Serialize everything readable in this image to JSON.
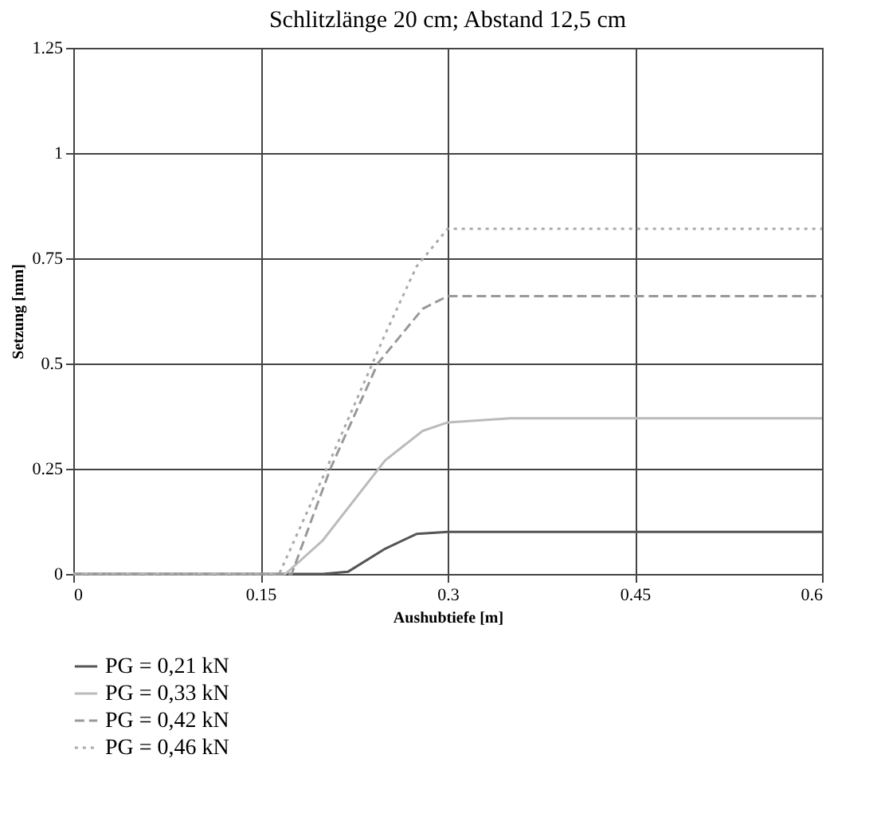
{
  "chart_data": {
    "type": "line",
    "title": "Schlitzlänge 20 cm; Abstand 12,5 cm",
    "xlabel": "Aushubtiefe [m]",
    "ylabel": "Setzung [mm]",
    "xlim": [
      0,
      0.6
    ],
    "xticks": [
      0,
      0.15,
      0.3,
      0.45,
      0.6
    ],
    "ylim": [
      0,
      1.25
    ],
    "yticks": [
      0,
      0.25,
      0.5,
      0.75,
      1,
      1.25
    ],
    "grid": true,
    "legend": "bottom left",
    "series": [
      {
        "name": "PG = 0,21 kN",
        "color": "#555555",
        "line_style": "solid",
        "x": [
          0,
          0.2,
          0.22,
          0.25,
          0.275,
          0.3,
          0.45,
          0.6
        ],
        "values": [
          0,
          0,
          0.005,
          0.06,
          0.095,
          0.1,
          0.1,
          0.1
        ]
      },
      {
        "name": "PG = 0,33 kN",
        "color": "#bbbbbb",
        "line_style": "solid",
        "x": [
          0,
          0.17,
          0.2,
          0.25,
          0.28,
          0.3,
          0.35,
          0.6
        ],
        "values": [
          0,
          0,
          0.08,
          0.27,
          0.34,
          0.36,
          0.37,
          0.37
        ]
      },
      {
        "name": "PG = 0,42 kN",
        "color": "#999999",
        "line_style": "dashed",
        "x": [
          0,
          0.175,
          0.206,
          0.244,
          0.28,
          0.3,
          0.6
        ],
        "values": [
          0,
          0,
          0.25,
          0.5,
          0.63,
          0.66,
          0.66
        ]
      },
      {
        "name": "PG = 0,46 kN",
        "color": "#aaaaaa",
        "line_style": "dotted",
        "x": [
          0,
          0.165,
          0.2,
          0.25,
          0.275,
          0.3,
          0.6
        ],
        "values": [
          0,
          0,
          0.23,
          0.57,
          0.73,
          0.82,
          0.82
        ]
      }
    ]
  }
}
